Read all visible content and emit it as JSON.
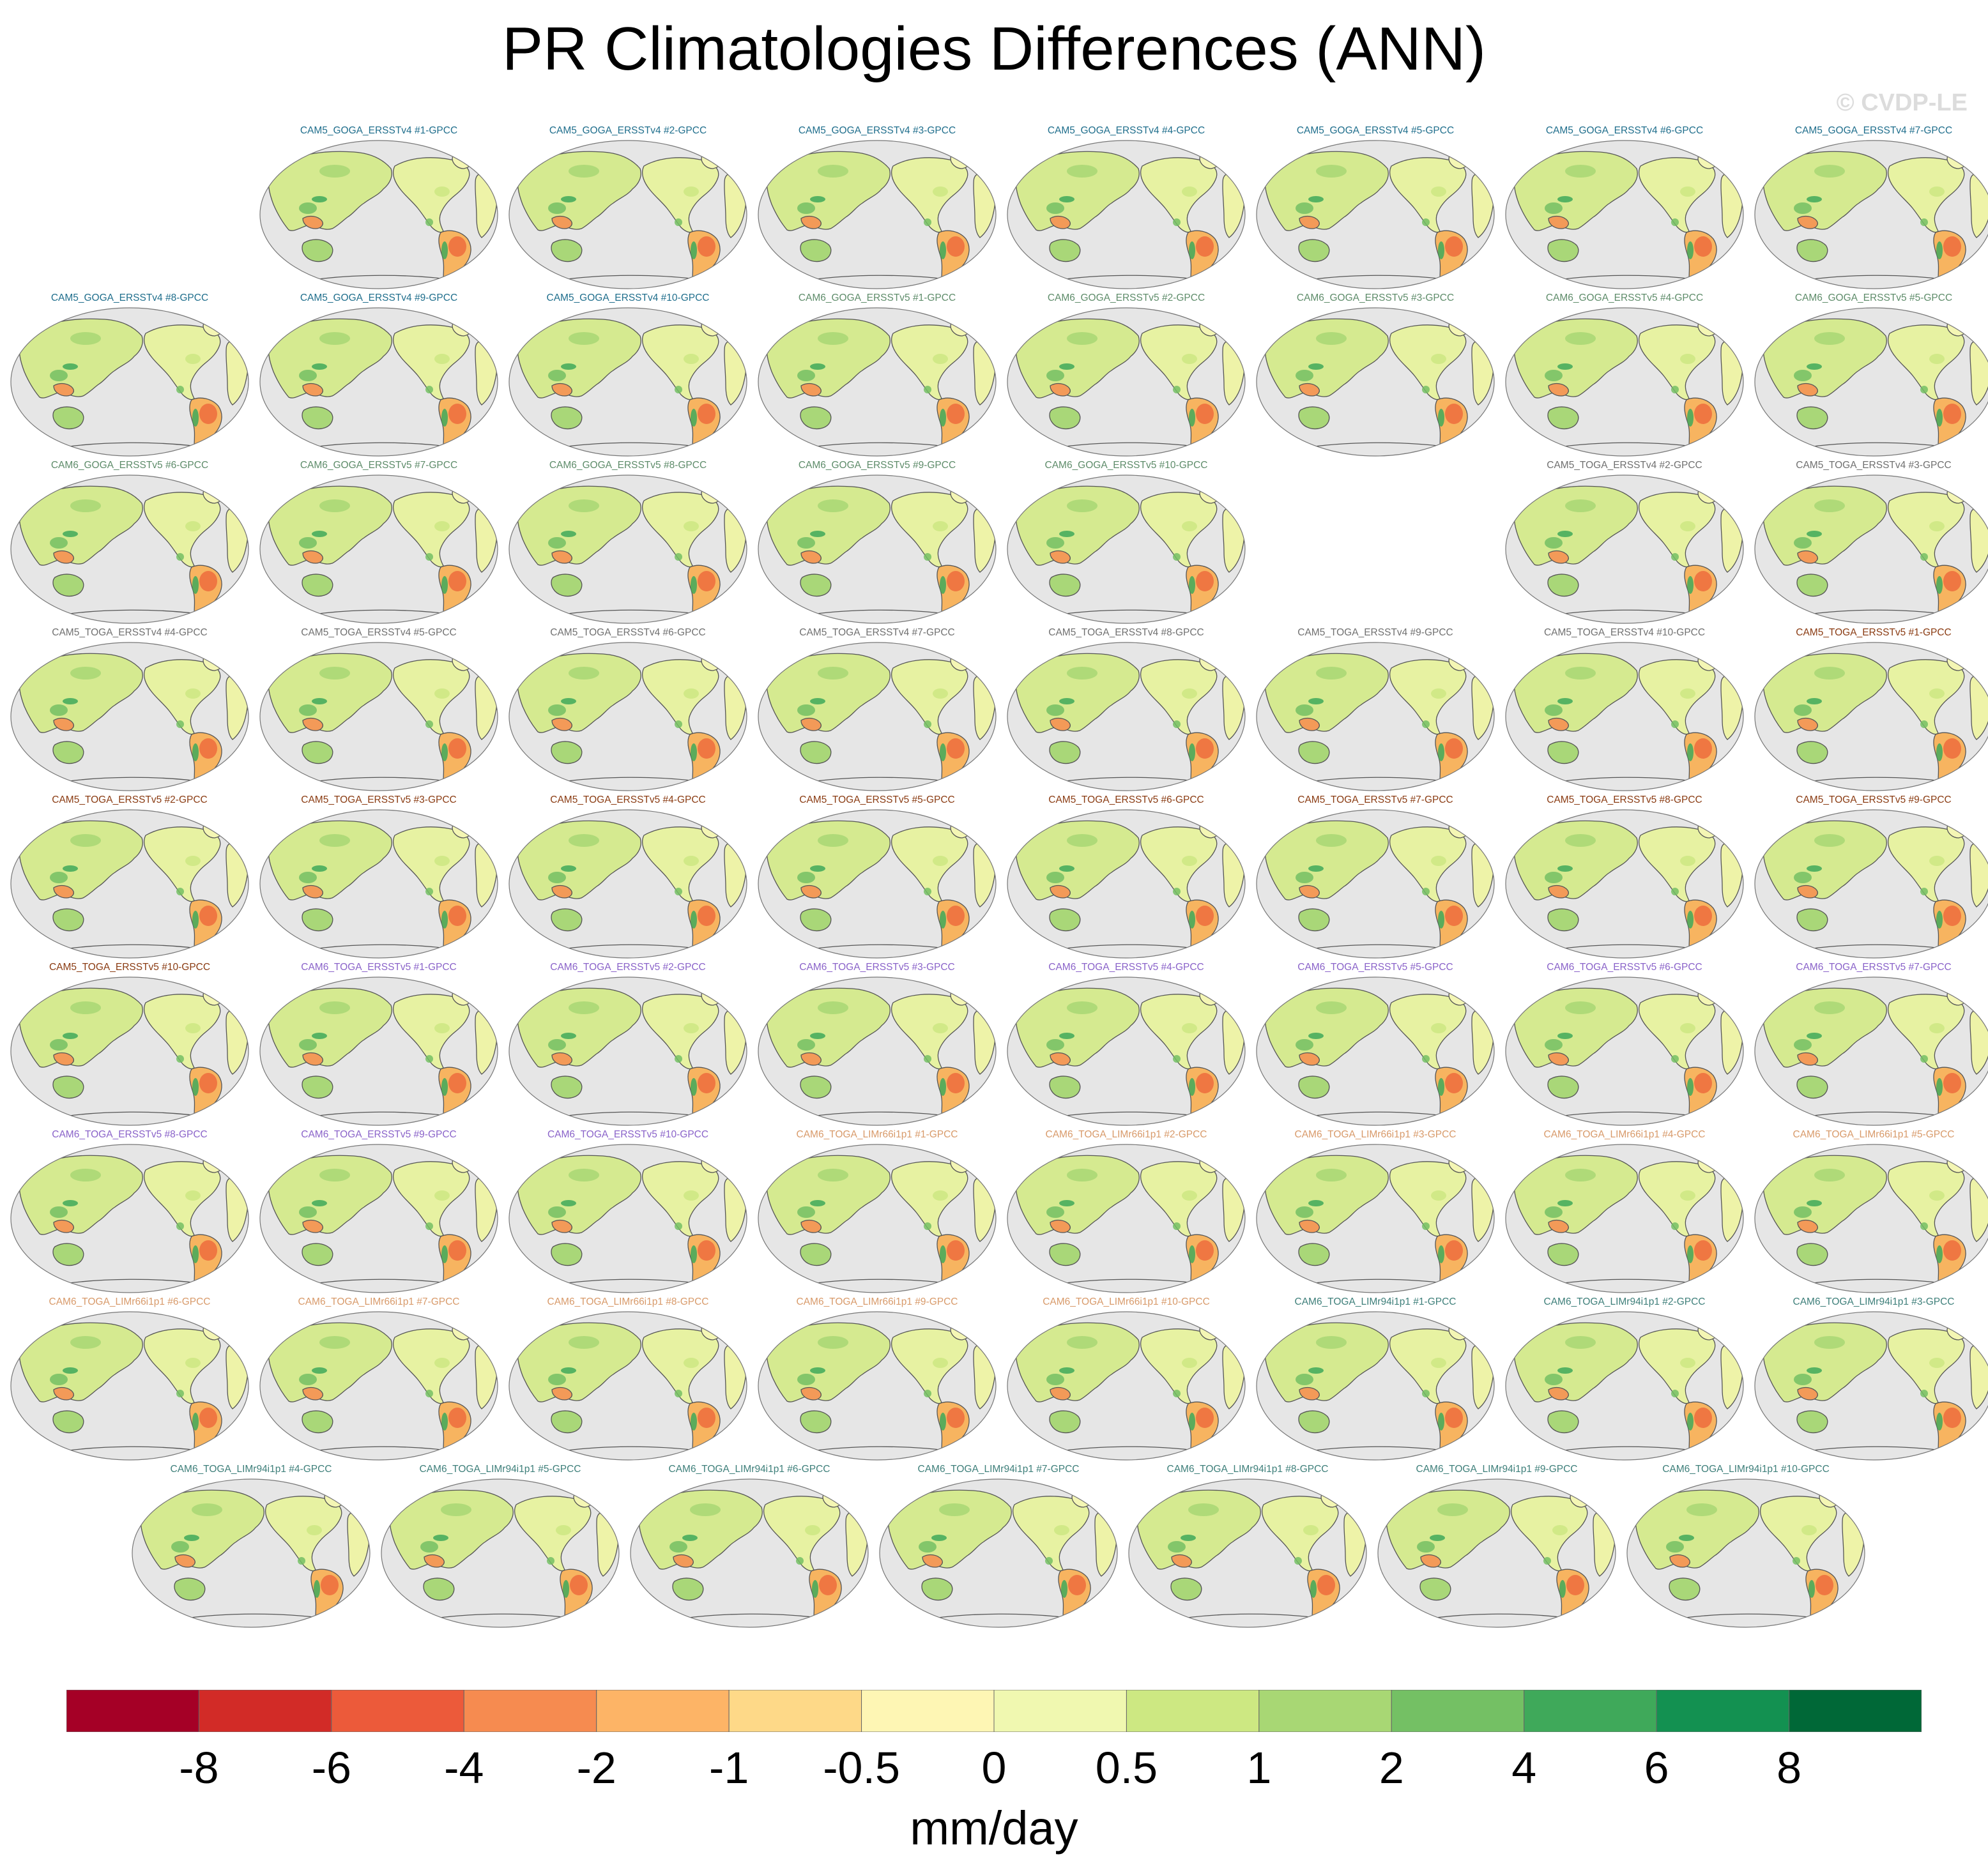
{
  "title": "PR Climatologies Differences (ANN)",
  "watermark": "© CVDP-LE",
  "map": {
    "projection": "robinson-style global map, Pacific-centered",
    "ocean_color": "#e6e6e6",
    "coastline_color": "#555555",
    "rows": [
      [
        null,
        "CAM5_GOGA_ERSSTv4 #1-GPCC",
        "CAM5_GOGA_ERSSTv4 #2-GPCC",
        "CAM5_GOGA_ERSSTv4 #3-GPCC",
        "CAM5_GOGA_ERSSTv4 #4-GPCC",
        "CAM5_GOGA_ERSSTv4 #5-GPCC",
        "CAM5_GOGA_ERSSTv4 #6-GPCC",
        "CAM5_GOGA_ERSSTv4 #7-GPCC"
      ],
      [
        "CAM5_GOGA_ERSSTv4 #8-GPCC",
        "CAM5_GOGA_ERSSTv4 #9-GPCC",
        "CAM5_GOGA_ERSSTv4 #10-GPCC",
        "CAM6_GOGA_ERSSTv5 #1-GPCC",
        "CAM6_GOGA_ERSSTv5 #2-GPCC",
        "CAM6_GOGA_ERSSTv5 #3-GPCC",
        "CAM6_GOGA_ERSSTv5 #4-GPCC",
        "CAM6_GOGA_ERSSTv5 #5-GPCC"
      ],
      [
        "CAM6_GOGA_ERSSTv5 #6-GPCC",
        "CAM6_GOGA_ERSSTv5 #7-GPCC",
        "CAM6_GOGA_ERSSTv5 #8-GPCC",
        "CAM6_GOGA_ERSSTv5 #9-GPCC",
        "CAM6_GOGA_ERSSTv5 #10-GPCC",
        null,
        "CAM5_TOGA_ERSSTv4 #2-GPCC",
        "CAM5_TOGA_ERSSTv4 #3-GPCC"
      ],
      [
        "CAM5_TOGA_ERSSTv4 #4-GPCC",
        "CAM5_TOGA_ERSSTv4 #5-GPCC",
        "CAM5_TOGA_ERSSTv4 #6-GPCC",
        "CAM5_TOGA_ERSSTv4 #7-GPCC",
        "CAM5_TOGA_ERSSTv4 #8-GPCC",
        "CAM5_TOGA_ERSSTv4 #9-GPCC",
        "CAM5_TOGA_ERSSTv4 #10-GPCC",
        "CAM5_TOGA_ERSSTv5 #1-GPCC"
      ],
      [
        "CAM5_TOGA_ERSSTv5 #2-GPCC",
        "CAM5_TOGA_ERSSTv5 #3-GPCC",
        "CAM5_TOGA_ERSSTv5 #4-GPCC",
        "CAM5_TOGA_ERSSTv5 #5-GPCC",
        "CAM5_TOGA_ERSSTv5 #6-GPCC",
        "CAM5_TOGA_ERSSTv5 #7-GPCC",
        "CAM5_TOGA_ERSSTv5 #8-GPCC",
        "CAM5_TOGA_ERSSTv5 #9-GPCC"
      ],
      [
        "CAM5_TOGA_ERSSTv5 #10-GPCC",
        "CAM6_TOGA_ERSSTv5 #1-GPCC",
        "CAM6_TOGA_ERSSTv5 #2-GPCC",
        "CAM6_TOGA_ERSSTv5 #3-GPCC",
        "CAM6_TOGA_ERSSTv5 #4-GPCC",
        "CAM6_TOGA_ERSSTv5 #5-GPCC",
        "CAM6_TOGA_ERSSTv5 #6-GPCC",
        "CAM6_TOGA_ERSSTv5 #7-GPCC"
      ],
      [
        "CAM6_TOGA_ERSSTv5 #8-GPCC",
        "CAM6_TOGA_ERSSTv5 #9-GPCC",
        "CAM6_TOGA_ERSSTv5 #10-GPCC",
        "CAM6_TOGA_LIMr66i1p1 #1-GPCC",
        "CAM6_TOGA_LIMr66i1p1 #2-GPCC",
        "CAM6_TOGA_LIMr66i1p1 #3-GPCC",
        "CAM6_TOGA_LIMr66i1p1 #4-GPCC",
        "CAM6_TOGA_LIMr66i1p1 #5-GPCC"
      ],
      [
        "CAM6_TOGA_LIMr66i1p1 #6-GPCC",
        "CAM6_TOGA_LIMr66i1p1 #7-GPCC",
        "CAM6_TOGA_LIMr66i1p1 #8-GPCC",
        "CAM6_TOGA_LIMr66i1p1 #9-GPCC",
        "CAM6_TOGA_LIMr66i1p1 #10-GPCC",
        "CAM6_TOGA_LIMr94i1p1 #1-GPCC",
        "CAM6_TOGA_LIMr94i1p1 #2-GPCC",
        "CAM6_TOGA_LIMr94i1p1 #3-GPCC"
      ],
      [
        "CAM6_TOGA_LIMr94i1p1 #4-GPCC",
        "CAM6_TOGA_LIMr94i1p1 #5-GPCC",
        "CAM6_TOGA_LIMr94i1p1 #6-GPCC",
        "CAM6_TOGA_LIMr94i1p1 #7-GPCC",
        "CAM6_TOGA_LIMr94i1p1 #8-GPCC",
        "CAM6_TOGA_LIMr94i1p1 #9-GPCC",
        "CAM6_TOGA_LIMr94i1p1 #10-GPCC"
      ]
    ],
    "title_colors": {
      "CAM5_GOGA_ERSSTv4": "#1f6e8c",
      "CAM6_GOGA_ERSSTv5": "#5e8c6a",
      "CAM5_TOGA_ERSSTv4": "#707070",
      "CAM5_TOGA_ERSSTv5": "#8a3b12",
      "CAM6_TOGA_ERSSTv5": "#8a63c9",
      "CAM6_TOGA_LIMr66i1p1": "#d89a6a",
      "CAM6_TOGA_LIMr94i1p1": "#3e7f7a"
    }
  },
  "colorbar": {
    "colors": [
      "#a50026",
      "#d22b27",
      "#ec5a3a",
      "#f68b50",
      "#fdb466",
      "#fed988",
      "#fef6b4",
      "#f0f8b0",
      "#cde882",
      "#a8d774",
      "#74c064",
      "#3fa95a",
      "#139151",
      "#006837"
    ],
    "tick_labels": [
      "-8",
      "-6",
      "-4",
      "-2",
      "-1",
      "-0.5",
      "0",
      "0.5",
      "1",
      "2",
      "4",
      "6",
      "8"
    ],
    "units": "mm/day"
  }
}
